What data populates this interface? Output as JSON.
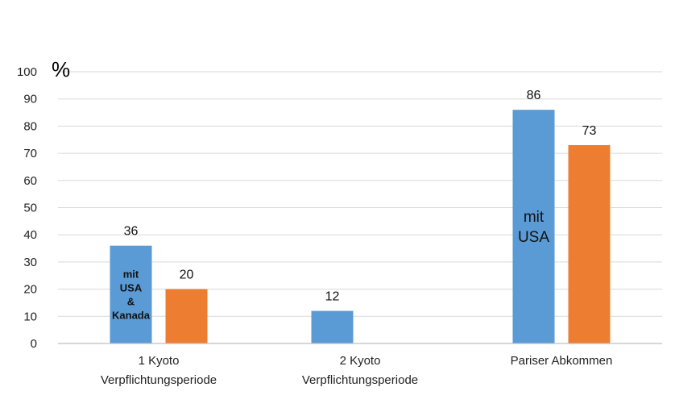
{
  "chart_data": {
    "type": "bar",
    "title": "",
    "xlabel": "",
    "ylabel": "%",
    "ylim": [
      0,
      100
    ],
    "yticks": [
      0,
      10,
      20,
      30,
      40,
      50,
      60,
      70,
      80,
      90,
      100
    ],
    "grid": true,
    "legend": "none",
    "categories": [
      [
        "1 Kyoto",
        "Verpflichtungsperiode"
      ],
      [
        "2 Kyoto",
        "Verpflichtungsperiode"
      ],
      [
        "Pariser Abkommen"
      ]
    ],
    "series": [
      {
        "color": "#5b9bd5",
        "values": [
          36,
          12,
          86
        ],
        "data_labels": [
          "36",
          "12",
          "86"
        ],
        "bar_annotations": [
          [
            "mit",
            "USA",
            "&",
            "Kanada"
          ],
          [],
          [
            "mit",
            "USA"
          ]
        ]
      },
      {
        "color": "#ed7d31",
        "values": [
          20,
          null,
          73
        ],
        "data_labels": [
          "20",
          "",
          "73"
        ]
      }
    ]
  }
}
